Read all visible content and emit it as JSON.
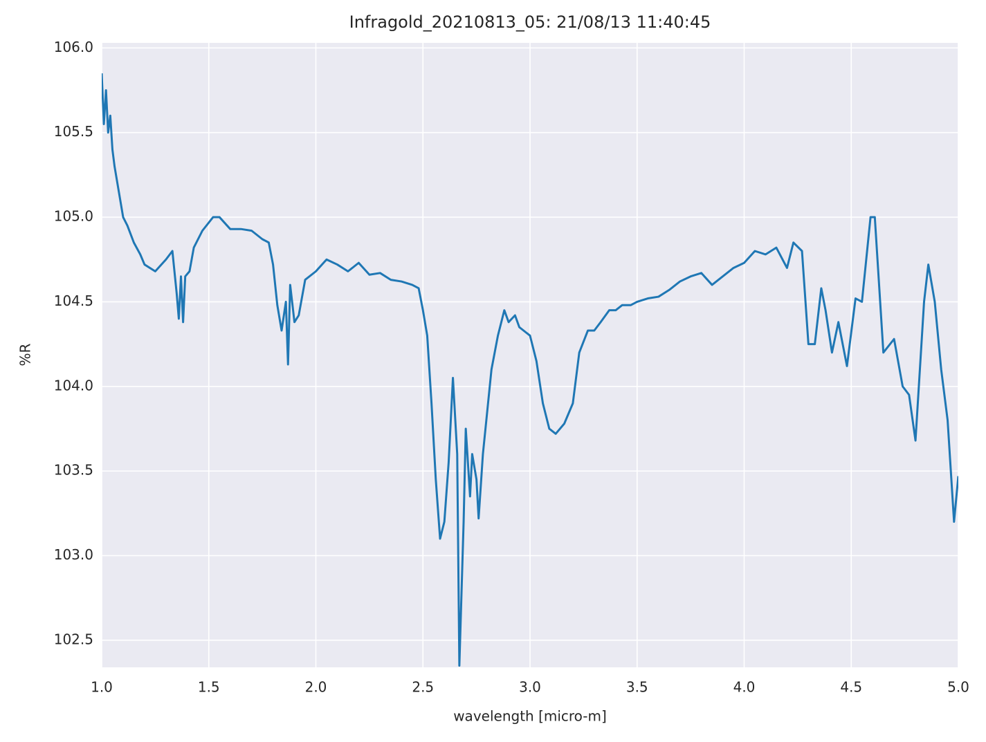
{
  "chart_data": {
    "type": "line",
    "title": "Infragold_20210813_05:  21/08/13 11:40:45",
    "xlabel": "wavelength [micro-m]",
    "ylabel": "%R",
    "xlim": [
      1.0,
      5.0
    ],
    "ylim": [
      102.34,
      106.03
    ],
    "xticks": [
      {
        "value": 1,
        "label": "1.0"
      },
      1.5,
      {
        "value": 2,
        "label": "2.0"
      },
      2.5,
      {
        "value": 3,
        "label": "3.0"
      },
      3.5,
      {
        "value": 4,
        "label": "4.0"
      },
      4.5,
      {
        "value": 5,
        "label": "5.0"
      }
    ],
    "yticks": [
      {
        "value": 102.5,
        "label": "102.5"
      },
      {
        "value": 103,
        "label": "103.0"
      },
      {
        "value": 103.5,
        "label": "103.5"
      },
      {
        "value": 104,
        "label": "104.0"
      },
      {
        "value": 104.5,
        "label": "104.5"
      },
      {
        "value": 105,
        "label": "105.0"
      },
      {
        "value": 105.5,
        "label": "105.5"
      },
      {
        "value": 106,
        "label": "106.0"
      }
    ],
    "grid": true,
    "background": "#eaeaf2",
    "x": [
      1.0,
      1.01,
      1.02,
      1.03,
      1.04,
      1.05,
      1.06,
      1.08,
      1.1,
      1.12,
      1.15,
      1.18,
      1.2,
      1.25,
      1.3,
      1.33,
      1.35,
      1.36,
      1.37,
      1.38,
      1.39,
      1.41,
      1.43,
      1.47,
      1.52,
      1.55,
      1.6,
      1.65,
      1.7,
      1.75,
      1.78,
      1.8,
      1.82,
      1.84,
      1.86,
      1.87,
      1.88,
      1.9,
      1.92,
      1.95,
      2.0,
      2.05,
      2.1,
      2.15,
      2.2,
      2.25,
      2.3,
      2.35,
      2.4,
      2.45,
      2.48,
      2.5,
      2.52,
      2.54,
      2.56,
      2.58,
      2.6,
      2.62,
      2.64,
      2.66,
      2.67,
      2.69,
      2.7,
      2.72,
      2.73,
      2.75,
      2.76,
      2.78,
      2.8,
      2.82,
      2.85,
      2.88,
      2.9,
      2.93,
      2.95,
      3.0,
      3.03,
      3.06,
      3.09,
      3.12,
      3.16,
      3.2,
      3.23,
      3.27,
      3.3,
      3.33,
      3.37,
      3.4,
      3.43,
      3.47,
      3.5,
      3.55,
      3.6,
      3.65,
      3.7,
      3.75,
      3.8,
      3.85,
      3.9,
      3.95,
      4.0,
      4.05,
      4.1,
      4.15,
      4.2,
      4.23,
      4.27,
      4.3,
      4.33,
      4.36,
      4.38,
      4.41,
      4.44,
      4.48,
      4.52,
      4.55,
      4.59,
      4.61,
      4.65,
      4.7,
      4.74,
      4.77,
      4.8,
      4.84,
      4.86,
      4.89,
      4.92,
      4.95,
      4.98,
      5.0
    ],
    "series": [
      {
        "color": "#1f77b4",
        "values": [
          105.85,
          105.55,
          105.75,
          105.5,
          105.6,
          105.4,
          105.3,
          105.15,
          105.0,
          104.95,
          104.85,
          104.78,
          104.72,
          104.68,
          104.75,
          104.8,
          104.55,
          104.4,
          104.65,
          104.38,
          104.65,
          104.68,
          104.82,
          104.92,
          105.0,
          105.0,
          104.93,
          104.93,
          104.92,
          104.87,
          104.85,
          104.72,
          104.48,
          104.33,
          104.5,
          104.13,
          104.6,
          104.38,
          104.42,
          104.63,
          104.68,
          104.75,
          104.72,
          104.68,
          104.73,
          104.66,
          104.67,
          104.63,
          104.62,
          104.6,
          104.58,
          104.45,
          104.3,
          103.9,
          103.45,
          103.1,
          103.2,
          103.55,
          104.05,
          103.6,
          102.35,
          103.2,
          103.75,
          103.35,
          103.6,
          103.45,
          103.22,
          103.6,
          103.85,
          104.1,
          104.3,
          104.45,
          104.38,
          104.42,
          104.35,
          104.3,
          104.15,
          103.9,
          103.75,
          103.72,
          103.78,
          103.9,
          104.2,
          104.33,
          104.33,
          104.38,
          104.45,
          104.45,
          104.48,
          104.48,
          104.5,
          104.52,
          104.53,
          104.57,
          104.62,
          104.65,
          104.67,
          104.6,
          104.65,
          104.7,
          104.73,
          104.8,
          104.78,
          104.82,
          104.7,
          104.85,
          104.8,
          104.25,
          104.25,
          104.58,
          104.45,
          104.2,
          104.38,
          104.12,
          104.52,
          104.5,
          105.0,
          105.0,
          104.2,
          104.28,
          104.0,
          103.95,
          103.68,
          104.5,
          104.72,
          104.5,
          104.1,
          103.8,
          103.2,
          103.47
        ]
      }
    ]
  }
}
